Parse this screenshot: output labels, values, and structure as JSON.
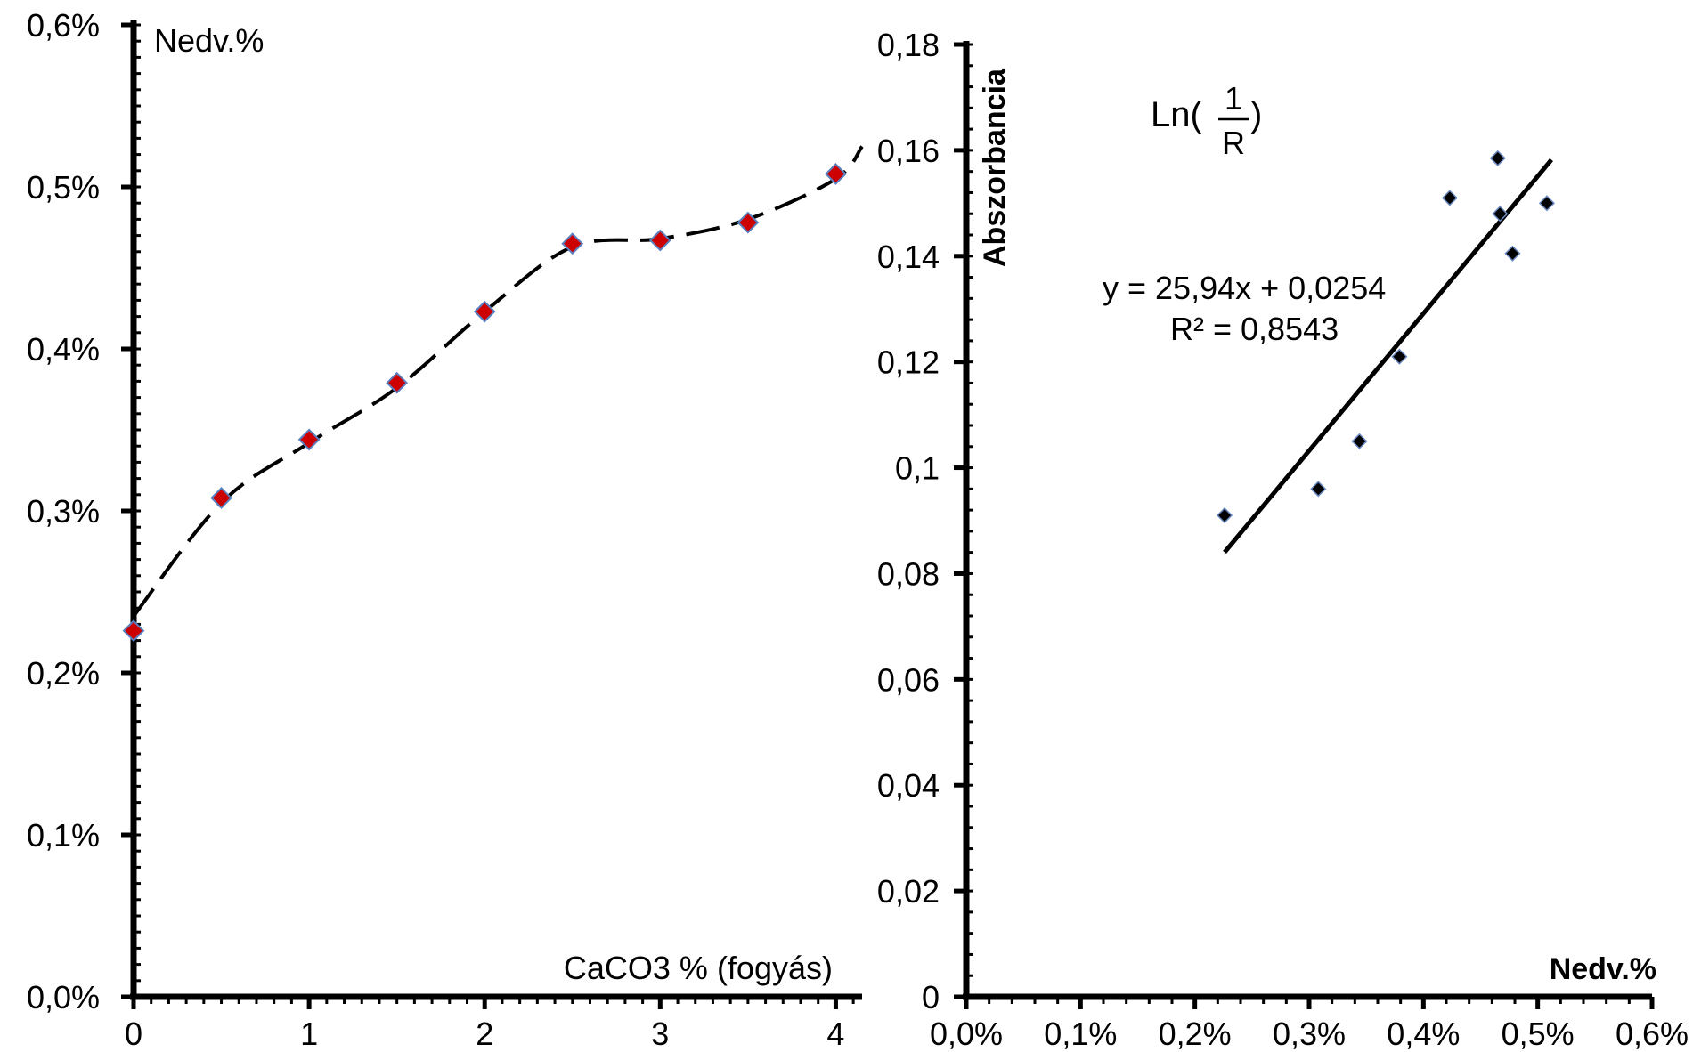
{
  "chart_data": [
    {
      "type": "line",
      "ylabel": "Nedv.%",
      "xlabel": "CaCO3 % (fogyás)",
      "xlim": [
        0,
        4.15
      ],
      "ylim": [
        0.0,
        0.6
      ],
      "x_ticks": [
        "0",
        "1",
        "2",
        "3",
        "4"
      ],
      "y_ticks": [
        "0,0%",
        "0,1%",
        "0,2%",
        "0,3%",
        "0,4%",
        "0,5%",
        "0,6%"
      ],
      "series": [
        {
          "x": [
            0,
            0.5,
            1,
            1.5,
            2,
            2.5,
            3,
            3.5,
            4
          ],
          "values": [
            0.226,
            0.308,
            0.344,
            0.379,
            0.423,
            0.465,
            0.467,
            0.478,
            0.508
          ]
        }
      ],
      "trend_curve": {
        "style": "dashed",
        "x": [
          0,
          0.5,
          1,
          1.5,
          2,
          2.5,
          3,
          3.5,
          4,
          4.15
        ],
        "values": [
          0.235,
          0.305,
          0.342,
          0.376,
          0.423,
          0.463,
          0.468,
          0.48,
          0.505,
          0.525
        ]
      },
      "marker": "diamond",
      "colors": {
        "marker_fill": "#cc0000",
        "marker_edge": "#5a7fbf",
        "line": "#000000"
      },
      "grid": false
    },
    {
      "type": "scatter",
      "ylabel": "Abszorbancia",
      "xlabel": "Nedv.%",
      "annotation_prefix": "Ln(",
      "annotation_num": "1",
      "annotation_den": "R",
      "annotation_suffix": ")",
      "equation": "y = 25,94x + 0,0254",
      "r_squared": "R² = 0,8543",
      "xlim": [
        0.0,
        0.006
      ],
      "ylim": [
        0,
        0.18
      ],
      "x_ticks": [
        "0,0%",
        "0,1%",
        "0,2%",
        "0,3%",
        "0,4%",
        "0,5%",
        "0,6%"
      ],
      "y_ticks": [
        "0",
        "0,02",
        "0,04",
        "0,06",
        "0,08",
        "0,1",
        "0,12",
        "0,14",
        "0,16",
        "0,18"
      ],
      "points": [
        {
          "x": 0.00226,
          "y": 0.091
        },
        {
          "x": 0.00308,
          "y": 0.096
        },
        {
          "x": 0.00344,
          "y": 0.105
        },
        {
          "x": 0.00379,
          "y": 0.121
        },
        {
          "x": 0.00423,
          "y": 0.151
        },
        {
          "x": 0.00465,
          "y": 0.1585
        },
        {
          "x": 0.00467,
          "y": 0.148
        },
        {
          "x": 0.00478,
          "y": 0.1405
        },
        {
          "x": 0.00508,
          "y": 0.15
        }
      ],
      "trendline": {
        "slope": 25.94,
        "intercept": 0.0254,
        "x_range": [
          0.00226,
          0.00512
        ]
      },
      "marker": "diamond",
      "colors": {
        "marker_fill": "#000000",
        "line": "#000000"
      },
      "grid": false
    }
  ]
}
